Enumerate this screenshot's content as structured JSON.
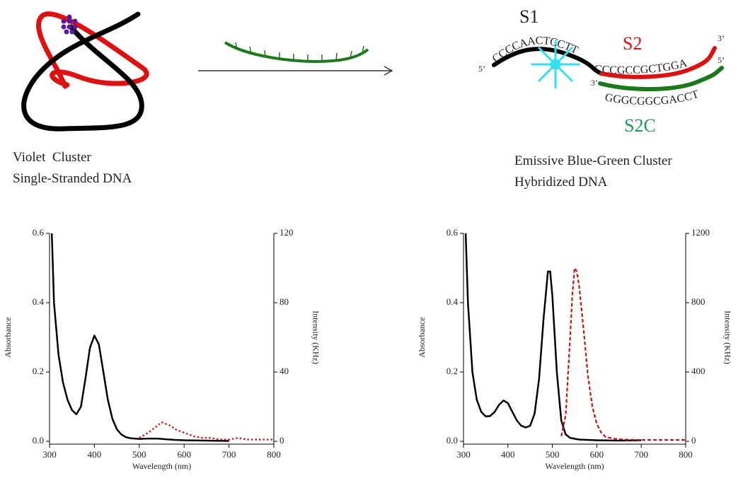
{
  "diagram": {
    "left_caption": [
      "Violet  Cluster",
      "Single-Stranded DNA"
    ],
    "right_caption": [
      "Emissive Blue-Green Cluster",
      "Hybridized DNA"
    ],
    "strands": {
      "s1": "S1",
      "s2": "S2",
      "s2c": "S2C"
    },
    "sequences": {
      "s1": "CCCCAACTCCTT",
      "s2": "CCCGCCGCTGGA",
      "s2c": "GGGCGGCGACCT"
    },
    "ends": [
      "5’",
      "3’",
      "3’",
      "5’"
    ]
  },
  "chart_data": [
    {
      "type": "line",
      "xlabel": "Wavelength (nm)",
      "ylabel": "Absorbance",
      "y2label": "Intensity (KHz)",
      "xlim": [
        300,
        800
      ],
      "xticks": [
        300,
        400,
        500,
        600,
        700,
        800
      ],
      "ylim": [
        0,
        0.6
      ],
      "yticks": [
        {
          "value": 0,
          "label": "0.0"
        },
        0.2,
        0.4,
        0.6
      ],
      "y2lim": [
        0,
        120
      ],
      "y2ticks": [
        0,
        40,
        80,
        120
      ],
      "series": [
        {
          "name": "Absorbance",
          "color": "#000000",
          "style": "solid",
          "x": [
            305,
            310,
            320,
            330,
            340,
            350,
            360,
            370,
            380,
            390,
            400,
            410,
            420,
            430,
            440,
            450,
            460,
            470,
            480,
            490,
            500,
            520,
            540,
            560,
            580,
            600,
            650,
            700
          ],
          "values": [
            0.6,
            0.4,
            0.25,
            0.17,
            0.12,
            0.09,
            0.078,
            0.1,
            0.18,
            0.27,
            0.305,
            0.28,
            0.2,
            0.12,
            0.065,
            0.035,
            0.02,
            0.012,
            0.009,
            0.008,
            0.007,
            0.008,
            0.008,
            0.006,
            0.004,
            0.003,
            0.002,
            0.001
          ]
        },
        {
          "name": "Intensity",
          "color": "#cc1111",
          "style": "dotted",
          "axis": "y2",
          "x": [
            500,
            520,
            540,
            550,
            560,
            570,
            580,
            600,
            620,
            640,
            660,
            680,
            700,
            720,
            740,
            760,
            780,
            800
          ],
          "values": [
            2,
            5,
            9,
            11,
            10,
            9,
            7,
            5,
            3,
            2,
            2,
            1,
            1,
            2,
            1,
            1,
            1,
            1
          ]
        }
      ]
    },
    {
      "type": "line",
      "xlabel": "Wavelength (nm)",
      "ylabel": "Absorbance",
      "y2label": "Intensity (KHz)",
      "xlim": [
        300,
        800
      ],
      "xticks": [
        300,
        400,
        500,
        600,
        700,
        800
      ],
      "ylim": [
        0,
        0.6
      ],
      "yticks": [
        {
          "value": 0,
          "label": "0.0"
        },
        0.2,
        0.4,
        0.6
      ],
      "y2lim": [
        0,
        1200
      ],
      "y2ticks": [
        0,
        400,
        800,
        1200
      ],
      "series": [
        {
          "name": "Absorbance",
          "color": "#000000",
          "style": "solid",
          "x": [
            305,
            310,
            320,
            330,
            340,
            350,
            360,
            370,
            380,
            390,
            400,
            410,
            420,
            430,
            440,
            450,
            460,
            470,
            480,
            490,
            495,
            500,
            510,
            520,
            530,
            540,
            560,
            600,
            650,
            700
          ],
          "values": [
            0.6,
            0.4,
            0.2,
            0.12,
            0.085,
            0.072,
            0.073,
            0.085,
            0.105,
            0.118,
            0.11,
            0.085,
            0.06,
            0.045,
            0.04,
            0.045,
            0.08,
            0.18,
            0.35,
            0.49,
            0.49,
            0.42,
            0.2,
            0.06,
            0.02,
            0.01,
            0.005,
            0.003,
            0.002,
            0.003
          ]
        },
        {
          "name": "Intensity",
          "color": "#cc1111",
          "style": "dashed",
          "axis": "y2",
          "x": [
            520,
            530,
            540,
            545,
            550,
            555,
            560,
            570,
            580,
            590,
            600,
            610,
            620,
            640,
            660,
            700,
            750,
            800
          ],
          "values": [
            30,
            150,
            600,
            850,
            1000,
            980,
            900,
            650,
            380,
            200,
            100,
            50,
            25,
            15,
            10,
            8,
            8,
            8
          ]
        }
      ]
    }
  ]
}
